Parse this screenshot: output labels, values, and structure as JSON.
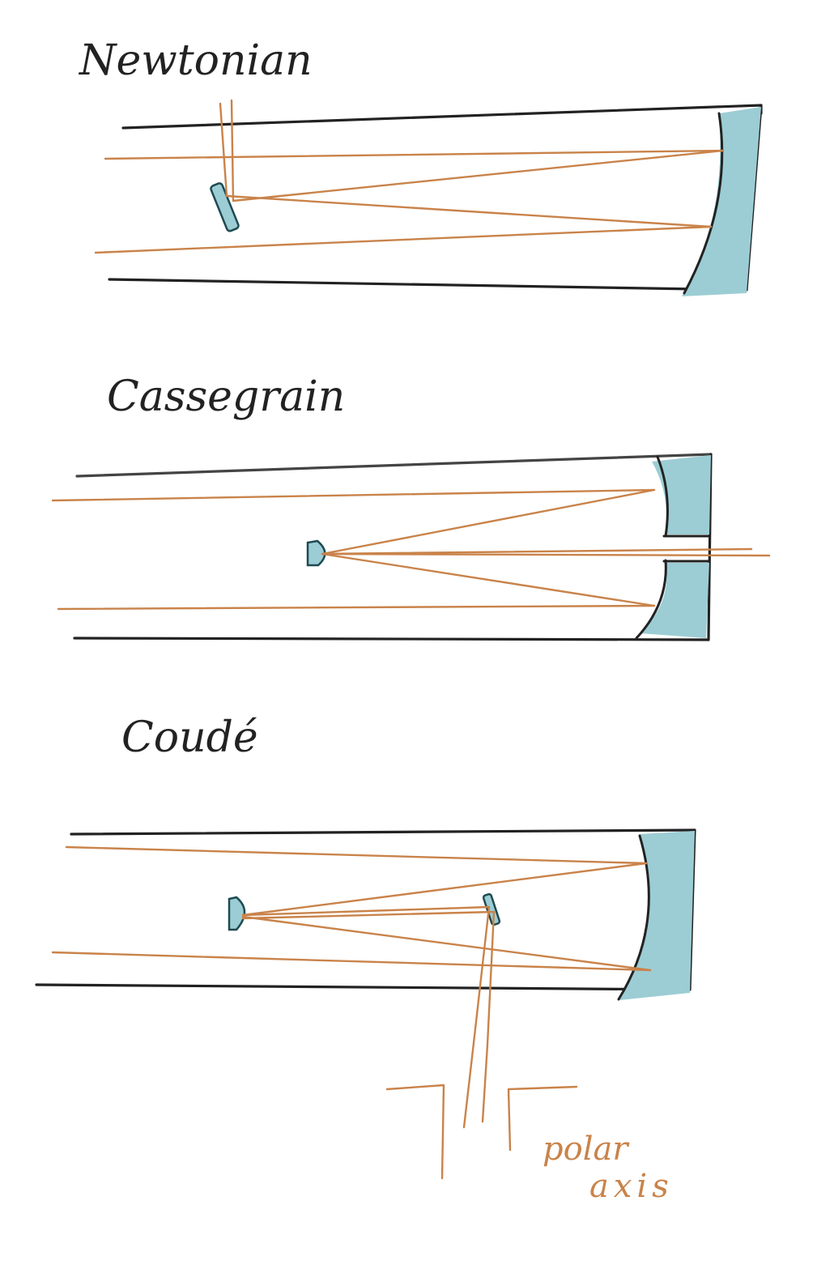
{
  "colors": {
    "ink": "#222222",
    "ray": "#c9834a",
    "mirror_fill": "#9ccdd4",
    "background": "#ffffff"
  },
  "diagrams": [
    {
      "title": "Newtonian"
    },
    {
      "title": "Cassegrain"
    },
    {
      "title": "Coudé"
    }
  ],
  "polar_axis": {
    "line1": "polar",
    "line2": "axis"
  }
}
